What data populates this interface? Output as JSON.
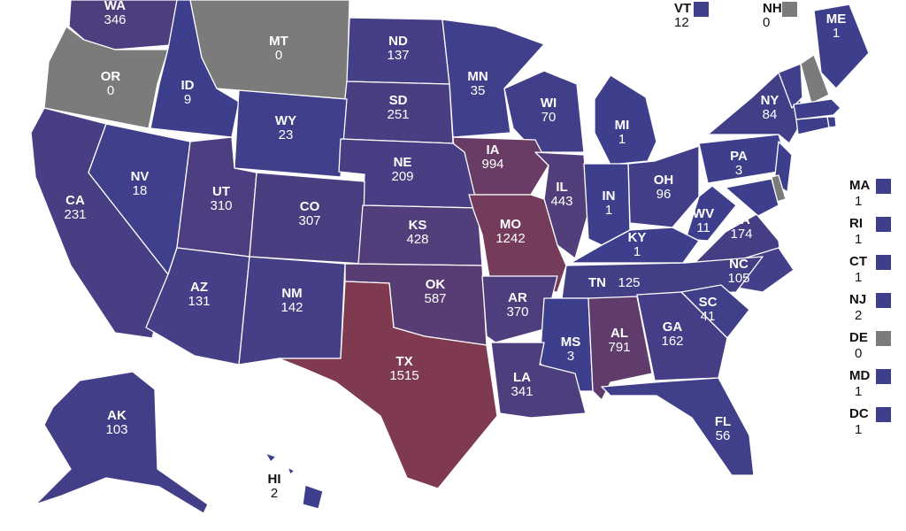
{
  "states": [
    {
      "abbr": "WA",
      "value": 346
    },
    {
      "abbr": "OR",
      "value": 0
    },
    {
      "abbr": "ID",
      "value": 9
    },
    {
      "abbr": "MT",
      "value": 0
    },
    {
      "abbr": "ND",
      "value": 137
    },
    {
      "abbr": "MN",
      "value": 35
    },
    {
      "abbr": "ME",
      "value": 1
    },
    {
      "abbr": "WI",
      "value": 70
    },
    {
      "abbr": "SD",
      "value": 251
    },
    {
      "abbr": "WY",
      "value": 23
    },
    {
      "abbr": "NY",
      "value": 84
    },
    {
      "abbr": "MI",
      "value": 1
    },
    {
      "abbr": "IA",
      "value": 994
    },
    {
      "abbr": "NE",
      "value": 209
    },
    {
      "abbr": "CA",
      "value": 231
    },
    {
      "abbr": "NV",
      "value": 18
    },
    {
      "abbr": "UT",
      "value": 310
    },
    {
      "abbr": "CO",
      "value": 307
    },
    {
      "abbr": "PA",
      "value": 3
    },
    {
      "abbr": "IL",
      "value": 443
    },
    {
      "abbr": "OH",
      "value": 96
    },
    {
      "abbr": "IN",
      "value": 1
    },
    {
      "abbr": "WV",
      "value": 11
    },
    {
      "abbr": "KY",
      "value": 1
    },
    {
      "abbr": "VA",
      "value": 174
    },
    {
      "abbr": "KS",
      "value": 428
    },
    {
      "abbr": "MO",
      "value": 1242
    },
    {
      "abbr": "NC",
      "value": 105
    },
    {
      "abbr": "TN",
      "value": 125
    },
    {
      "abbr": "OK",
      "value": 587
    },
    {
      "abbr": "AR",
      "value": 370
    },
    {
      "abbr": "AZ",
      "value": 131
    },
    {
      "abbr": "NM",
      "value": 142
    },
    {
      "abbr": "SC",
      "value": 41
    },
    {
      "abbr": "GA",
      "value": 162
    },
    {
      "abbr": "MS",
      "value": 3
    },
    {
      "abbr": "AL",
      "value": 791
    },
    {
      "abbr": "TX",
      "value": 1515
    },
    {
      "abbr": "LA",
      "value": 341
    },
    {
      "abbr": "FL",
      "value": 56
    },
    {
      "abbr": "AK",
      "value": 103
    },
    {
      "abbr": "HI",
      "value": 2
    }
  ],
  "callouts": [
    {
      "abbr": "VT",
      "value": 12
    },
    {
      "abbr": "NH",
      "value": 0
    },
    {
      "abbr": "MA",
      "value": 1
    },
    {
      "abbr": "RI",
      "value": 1
    },
    {
      "abbr": "CT",
      "value": 1
    },
    {
      "abbr": "NJ",
      "value": 2
    },
    {
      "abbr": "DE",
      "value": 0
    },
    {
      "abbr": "MD",
      "value": 1
    },
    {
      "abbr": "DC",
      "value": 1
    }
  ]
}
